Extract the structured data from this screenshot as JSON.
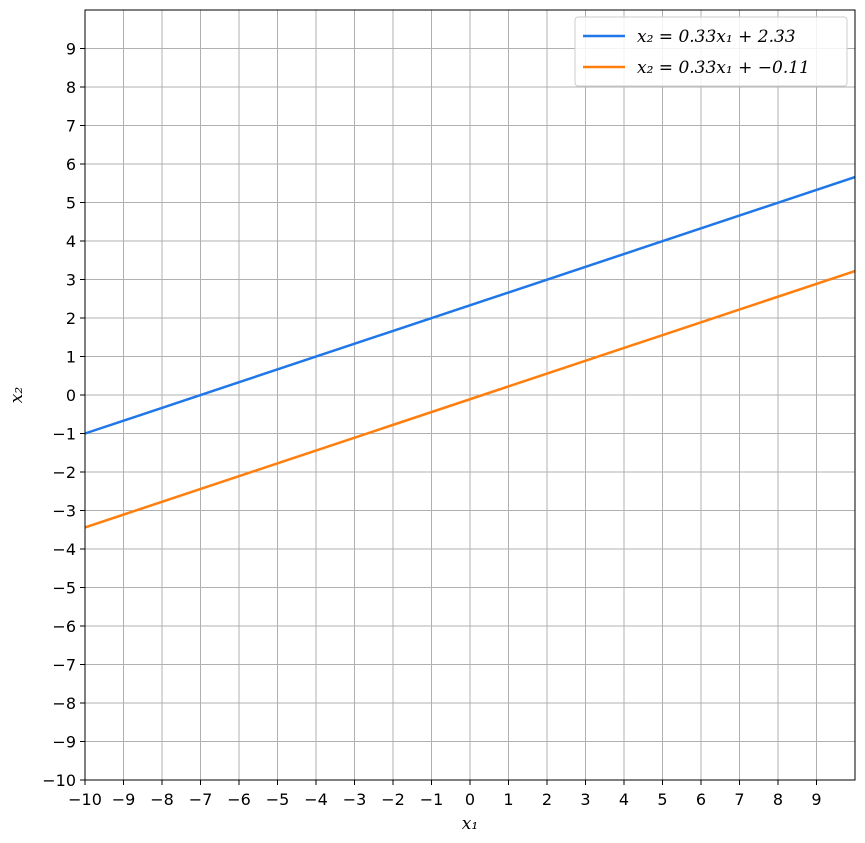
{
  "chart_data": {
    "type": "line",
    "xlabel": "x₁",
    "ylabel": "x₂",
    "xlim": [
      -10,
      10
    ],
    "ylim": [
      -10,
      10
    ],
    "xticks": [
      -10,
      -9,
      -8,
      -7,
      -6,
      -5,
      -4,
      -3,
      -2,
      -1,
      0,
      1,
      2,
      3,
      4,
      5,
      6,
      7,
      8,
      9
    ],
    "yticks": [
      -10,
      -9,
      -8,
      -7,
      -6,
      -5,
      -4,
      -3,
      -2,
      -1,
      0,
      1,
      2,
      3,
      4,
      5,
      6,
      7,
      8,
      9
    ],
    "xtick_labels": [
      "−10",
      "−9",
      "−8",
      "−7",
      "−6",
      "−5",
      "−4",
      "−3",
      "−2",
      "−1",
      "0",
      "1",
      "2",
      "3",
      "4",
      "5",
      "6",
      "7",
      "8",
      "9"
    ],
    "ytick_labels": [
      "−10",
      "−9",
      "−8",
      "−7",
      "−6",
      "−5",
      "−4",
      "−3",
      "−2",
      "−1",
      "0",
      "1",
      "2",
      "3",
      "4",
      "5",
      "6",
      "7",
      "8",
      "9"
    ],
    "grid": true,
    "legend_position": "top-right",
    "series": [
      {
        "name": "x₂ = 0.33x₁ + 2.33",
        "color": "#1f77e8",
        "x": [
          -10,
          10
        ],
        "y": [
          -1.0,
          5.66
        ]
      },
      {
        "name": "x₂ = 0.33x₁ + −0.11",
        "color": "#ff7f0e",
        "x": [
          -10,
          10
        ],
        "y": [
          -3.44,
          3.22
        ]
      }
    ]
  }
}
